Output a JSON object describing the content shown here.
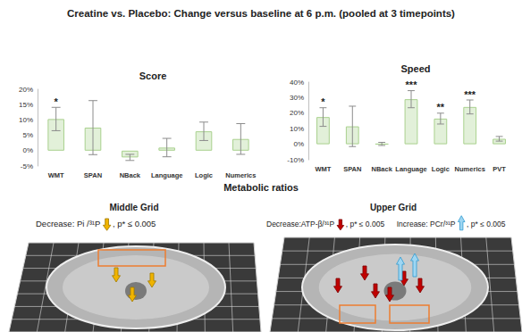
{
  "title": "Creatine vs. Placebo: Change versus baseline at 6 p.m. (pooled at 3 timepoints)",
  "chart_data": [
    {
      "type": "bar",
      "title": "Score",
      "categories": [
        "WMT",
        "SPAN",
        "NBack",
        "Language",
        "Logic",
        "Numerics"
      ],
      "values": [
        10.3,
        7.5,
        -2.2,
        1.0,
        6.3,
        3.8
      ],
      "errors": [
        3.8,
        8.8,
        1.0,
        3.0,
        3.0,
        5.0
      ],
      "significance": [
        "*",
        null,
        null,
        null,
        null,
        null
      ],
      "color": "#e2f0d9",
      "ylim": [
        -5,
        20
      ],
      "yticks": [
        {
          "value": -5,
          "label": "-5%"
        },
        {
          "value": 0,
          "label": "0%"
        },
        {
          "value": 5,
          "label": "5%"
        },
        {
          "value": 10,
          "label": "10%"
        },
        {
          "value": 15,
          "label": "15%"
        },
        {
          "value": 20,
          "label": "20%"
        }
      ],
      "grid": false
    },
    {
      "type": "bar",
      "title": "Speed",
      "categories": [
        "WMT",
        "SPAN",
        "NBack",
        "Language",
        "Logic",
        "Numerics",
        "PVT"
      ],
      "values": [
        17.5,
        11.5,
        0.2,
        29.0,
        16.5,
        24.0,
        3.5
      ],
      "errors": [
        6.0,
        13.0,
        1.0,
        5.5,
        3.5,
        4.5,
        1.5
      ],
      "significance": [
        "*",
        null,
        null,
        "***",
        "**",
        "***",
        null
      ],
      "color": "#e2f0d9",
      "ylim": [
        -10,
        40
      ],
      "yticks": [
        {
          "value": -10,
          "label": "-10%"
        },
        {
          "value": 0,
          "label": "0%"
        },
        {
          "value": 10,
          "label": "10%"
        },
        {
          "value": 20,
          "label": "20%"
        },
        {
          "value": 30,
          "label": "30%"
        },
        {
          "value": 40,
          "label": "40%"
        }
      ],
      "grid": false
    }
  ],
  "metabolic_ratios": {
    "title": "Metabolic ratios",
    "panels": [
      {
        "title": "Middle Grid",
        "items": [
          {
            "label": "Decrease: Pi /³¹P",
            "direction": "down",
            "color": "#f0b400",
            "note": ", p* ≤ 0.005"
          }
        ]
      },
      {
        "title": "Upper Grid",
        "items": [
          {
            "label": "Decrease:ATP-β/³¹P",
            "direction": "down",
            "color": "#c00000",
            "note": ", p* ≤ 0.005"
          },
          {
            "label": "Increase: PCr/³¹P",
            "direction": "up",
            "color": "#9fd6f2",
            "note": ", p* ≤ 0.005"
          }
        ]
      }
    ]
  }
}
